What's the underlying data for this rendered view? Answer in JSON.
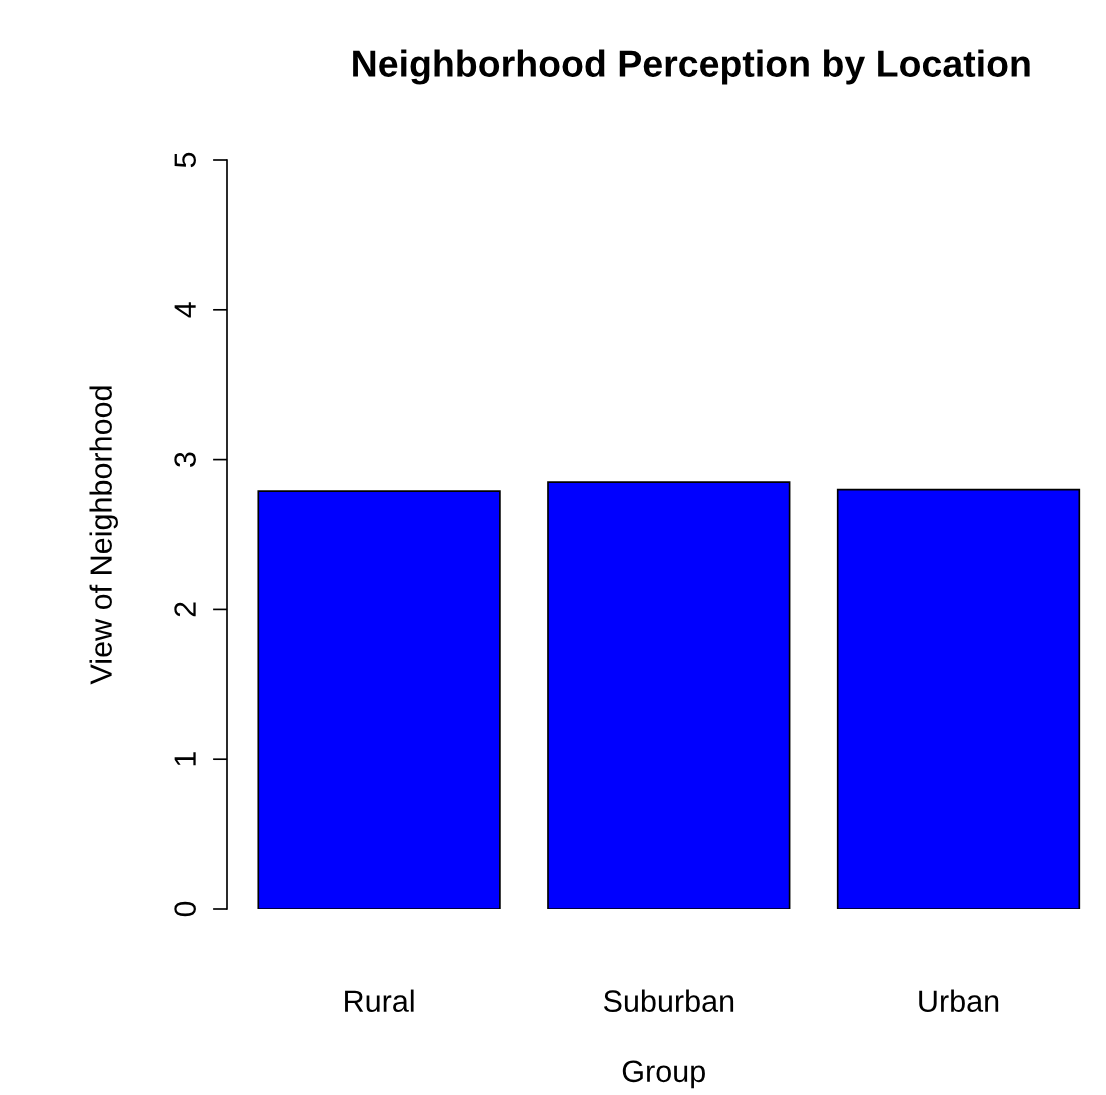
{
  "chart_data": {
    "type": "bar",
    "title": "Neighborhood Perception by Location",
    "xlabel": "Group",
    "ylabel": "View of Neighborhood",
    "categories": [
      "Rural",
      "Suburban",
      "Urban"
    ],
    "values": [
      2.79,
      2.85,
      2.8
    ],
    "color": "#0000ff",
    "ylim": [
      0,
      5
    ],
    "yticks": [
      0,
      1,
      2,
      3,
      4,
      5
    ],
    "grid": false,
    "legend": false
  }
}
